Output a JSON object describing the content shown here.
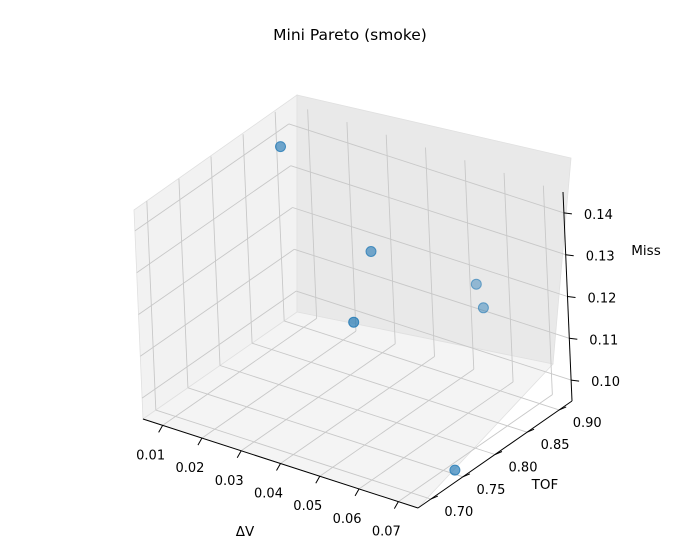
{
  "chart_data": {
    "type": "scatter",
    "projection": "3d",
    "title": "Mini Pareto (smoke)",
    "xlabel": "ΔV",
    "ylabel": "TOF",
    "zlabel": "Miss",
    "xticks": [
      "0.01",
      "0.02",
      "0.03",
      "0.04",
      "0.05",
      "0.06",
      "0.07"
    ],
    "yticks": [
      "0.70",
      "0.75",
      "0.80",
      "0.85",
      "0.90"
    ],
    "zticks": [
      "0.10",
      "0.11",
      "0.12",
      "0.13",
      "0.14"
    ],
    "xlim": [
      0.005,
      0.075
    ],
    "ylim": [
      0.68,
      0.92
    ],
    "zlim": [
      0.095,
      0.145
    ],
    "grid": true,
    "marker_color": "#1f77b4",
    "points": [
      {
        "x": 0.006,
        "y": 0.9,
        "z": 0.137
      },
      {
        "x": 0.035,
        "y": 0.86,
        "z": 0.125
      },
      {
        "x": 0.04,
        "y": 0.8,
        "z": 0.116
      },
      {
        "x": 0.055,
        "y": 0.9,
        "z": 0.119
      },
      {
        "x": 0.06,
        "y": 0.88,
        "z": 0.117
      },
      {
        "x": 0.073,
        "y": 0.75,
        "z": 0.096
      }
    ]
  }
}
